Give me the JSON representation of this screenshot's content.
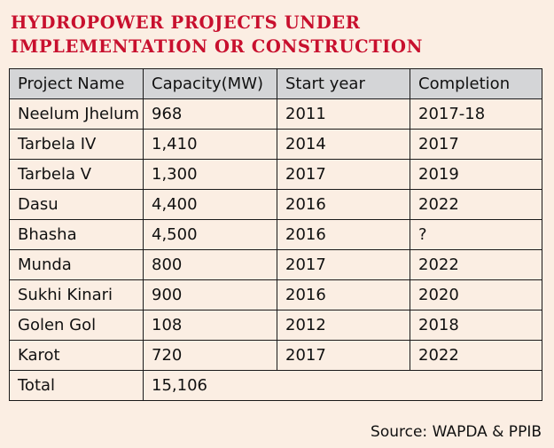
{
  "chart_data": {
    "type": "table",
    "title": "HYDROPOWER PROJECTS UNDER IMPLEMENTATION OR CONSTRUCTION",
    "columns": [
      "Project Name",
      "Capacity(MW)",
      "Start year",
      "Completion"
    ],
    "rows": [
      [
        "Neelum Jhelum",
        "968",
        "2011",
        "2017-18"
      ],
      [
        "Tarbela IV",
        "1,410",
        "2014",
        "2017"
      ],
      [
        "Tarbela V",
        "1,300",
        "2017",
        "2019"
      ],
      [
        "Dasu",
        "4,400",
        "2016",
        "2022"
      ],
      [
        "Bhasha",
        "4,500",
        "2016",
        "?"
      ],
      [
        "Munda",
        "800",
        "2017",
        "2022"
      ],
      [
        "Sukhi Kinari",
        "900",
        "2016",
        "2020"
      ],
      [
        "Golen Gol",
        "108",
        "2012",
        "2018"
      ],
      [
        "Karot",
        "720",
        "2017",
        "2022"
      ]
    ],
    "total": {
      "label": "Total",
      "capacity": "15,106"
    },
    "source": "Source: WAPDA & PPIB"
  },
  "colors": {
    "background": "#fbeee3",
    "title": "#c8102e",
    "header_fill": "#d4d5d7",
    "border": "#1a1a1a"
  }
}
